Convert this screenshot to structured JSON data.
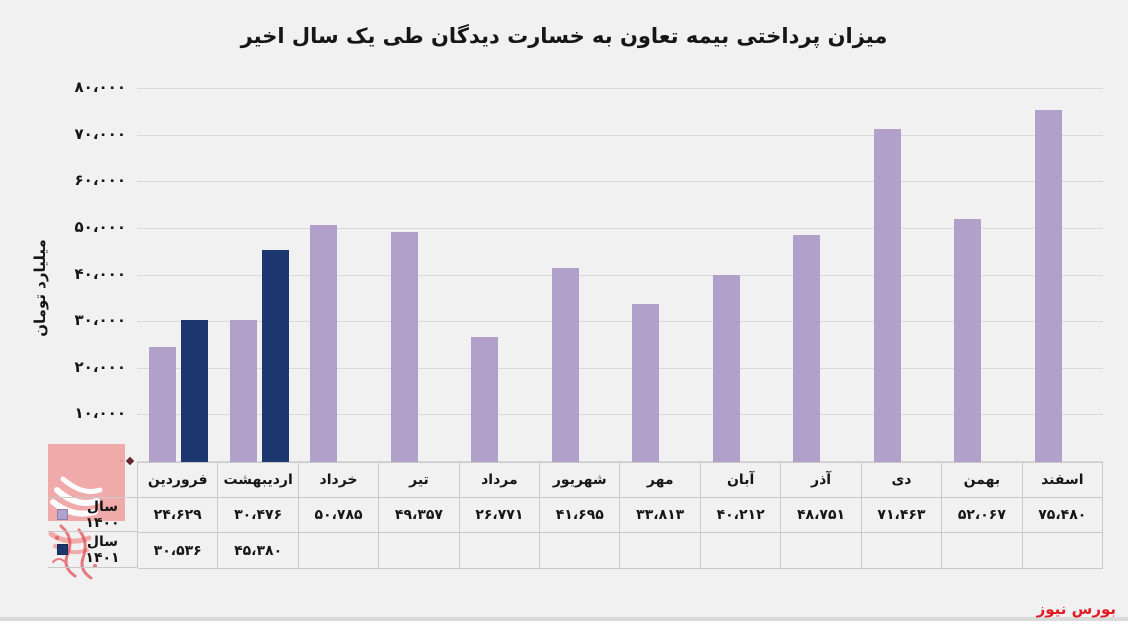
{
  "chart_data": {
    "type": "bar",
    "title": "میزان پرداختی بیمه تعاون به خسارت دیدگان طی یک سال اخیر",
    "ylabel": "میلیارد تومان",
    "ylim": [
      0,
      80000
    ],
    "ytick_step": 10000,
    "ytick_labels": [
      "۰",
      "۱۰،۰۰۰",
      "۲۰،۰۰۰",
      "۳۰،۰۰۰",
      "۴۰،۰۰۰",
      "۵۰،۰۰۰",
      "۶۰،۰۰۰",
      "۷۰،۰۰۰",
      "۸۰،۰۰۰"
    ],
    "grid": "horizontal",
    "legend_position": "data-table-left",
    "categories": [
      "فروردین",
      "اردیبهشت",
      "خرداد",
      "تیر",
      "مرداد",
      "شهریور",
      "مهر",
      "آبان",
      "آذر",
      "دی",
      "بهمن",
      "اسفند"
    ],
    "series": [
      {
        "name": "سال ۱۴۰۰",
        "color": "#b1a0c9",
        "values": [
          24629,
          30476,
          50785,
          49357,
          26771,
          41695,
          33813,
          40212,
          48751,
          71463,
          52067,
          75480
        ],
        "display": [
          "۲۴،۶۲۹",
          "۳۰،۴۷۶",
          "۵۰،۷۸۵",
          "۴۹،۳۵۷",
          "۲۶،۷۷۱",
          "۴۱،۶۹۵",
          "۳۳،۸۱۳",
          "۴۰،۲۱۲",
          "۴۸،۷۵۱",
          "۷۱،۴۶۳",
          "۵۲،۰۶۷",
          "۷۵،۴۸۰"
        ]
      },
      {
        "name": "سال ۱۴۰۱",
        "color": "#1c3670",
        "values": [
          30536,
          45380,
          null,
          null,
          null,
          null,
          null,
          null,
          null,
          null,
          null,
          null
        ],
        "display": [
          "۳۰،۵۳۶",
          "۴۵،۳۸۰",
          "",
          "",
          "",
          "",
          "",
          "",
          "",
          "",
          "",
          ""
        ]
      }
    ]
  },
  "branding": {
    "source_label": "بورس نیوز",
    "logo": "bourse-news-logo",
    "accent_red": "#e01b24",
    "logo_pink": "#f2a4a4"
  },
  "colors": {
    "background": "#f1f1f2",
    "gridline": "#d9d9d9",
    "table_border": "#c9c9c9",
    "text": "#161616"
  }
}
